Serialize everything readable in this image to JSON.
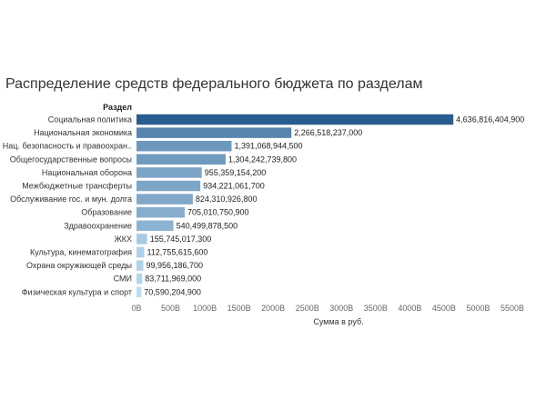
{
  "chart_data": {
    "type": "bar",
    "orientation": "horizontal",
    "title": "Распределение средств федерального бюджета по разделам",
    "category_header": "Раздел",
    "xlabel": "Сумма в руб.",
    "ylabel": "Раздел",
    "xlim": [
      0,
      5500000000000
    ],
    "xticks": [
      {
        "value": 0,
        "label": "0B"
      },
      {
        "value": 500000000000,
        "label": "500B"
      },
      {
        "value": 1000000000000,
        "label": "1000B"
      },
      {
        "value": 1500000000000,
        "label": "1500B"
      },
      {
        "value": 2000000000000,
        "label": "2000B"
      },
      {
        "value": 2500000000000,
        "label": "2500B"
      },
      {
        "value": 3000000000000,
        "label": "3000B"
      },
      {
        "value": 3500000000000,
        "label": "3500B"
      },
      {
        "value": 4000000000000,
        "label": "4000B"
      },
      {
        "value": 4500000000000,
        "label": "4500B"
      },
      {
        "value": 5000000000000,
        "label": "5000B"
      },
      {
        "value": 5500000000000,
        "label": "5500B"
      }
    ],
    "grid": false,
    "color_scale": [
      "#bcdcf1",
      "#2a5d8f"
    ],
    "categories": [
      "Социальная политика",
      "Национальная экономика",
      "Нац. безопасность и правоохран..",
      "Общегосударственные вопросы",
      "Национальная оборона",
      "Межбюджетные трансферты",
      "Обслуживание гос. и мун. долга",
      "Образование",
      "Здравоохранение",
      "ЖКХ",
      "Культура, кинематография",
      "Охрана окружающей среды",
      "СМИ",
      "Физическая культура и спорт"
    ],
    "values": [
      4636816404900,
      2266518237000,
      1391068944500,
      1304242739800,
      955359154200,
      934221061700,
      824310926800,
      705010750900,
      540499878500,
      155745017300,
      112755615600,
      99956186700,
      83711969000,
      70590204900
    ],
    "value_labels": [
      "4,636,816,404,900",
      "2,266,518,237,000",
      "1,391,068,944,500",
      "1,304,242,739,800",
      "955,359,154,200",
      "934,221,061,700",
      "824,310,926,800",
      "705,010,750,900",
      "540,499,878,500",
      "155,745,017,300",
      "112,755,615,600",
      "99,956,186,700",
      "83,711,969,000",
      "70,590,204,900"
    ]
  }
}
